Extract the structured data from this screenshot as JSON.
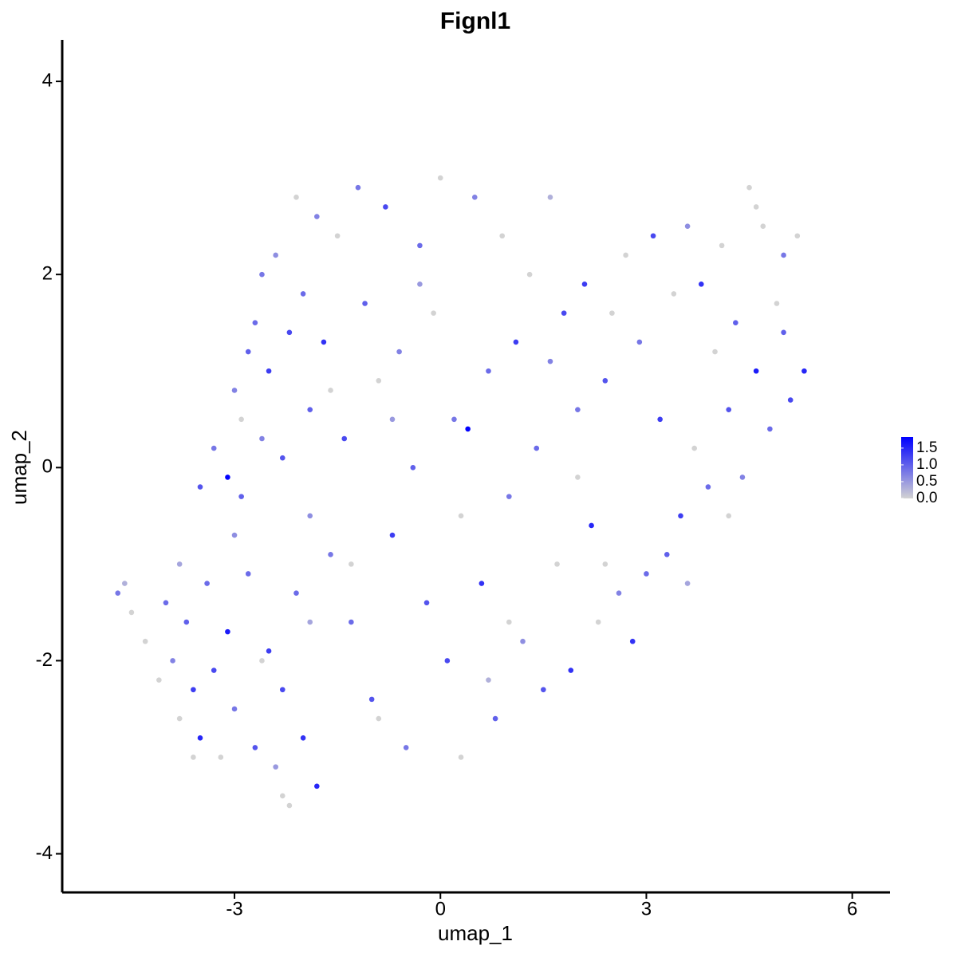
{
  "chart_data": {
    "type": "scatter",
    "title": "Fignl1",
    "x_label": "umap_1",
    "y_label": "umap_2",
    "xlim": [
      -5.51,
      6.55
    ],
    "ylim": [
      -4.4,
      4.43
    ],
    "xticks": [
      -3,
      0,
      3,
      6
    ],
    "yticks": [
      -4,
      -2,
      0,
      2,
      4
    ],
    "color_low": "#d3d3d3",
    "color_high": "#0000ff",
    "clim": [
      0,
      1.83
    ],
    "cticks": [
      {
        "value": 0,
        "label": "0.0"
      },
      0.5,
      {
        "value": 1,
        "label": "1.0"
      },
      1.5
    ],
    "x": [
      -4.7,
      -4.6,
      -4.5,
      -4.3,
      -4.1,
      -4.0,
      -3.9,
      -3.8,
      -3.7,
      -3.6,
      -3.5,
      -3.4,
      -3.3,
      -3.2,
      -3.1,
      -3.0,
      -3.0,
      -2.9,
      -2.8,
      -2.7,
      -2.6,
      -2.5,
      -2.4,
      -2.3,
      -2.2,
      -2.1,
      -2.0,
      -1.9,
      -1.8,
      -3.5,
      -3.3,
      -3.1,
      -3.0,
      -2.8,
      -2.9,
      -2.7,
      -2.6,
      -2.5,
      -2.4,
      -2.3,
      -2.2,
      -2.1,
      -2.0,
      -1.9,
      -1.8,
      -1.7,
      -1.6,
      -1.5,
      -1.4,
      -1.3,
      -1.2,
      -1.1,
      -1.0,
      -0.9,
      -0.8,
      -0.7,
      -0.6,
      -0.5,
      -0.4,
      -0.3,
      -0.2,
      -0.1,
      0.0,
      0.1,
      0.2,
      0.3,
      0.4,
      0.5,
      0.6,
      0.7,
      0.8,
      0.9,
      1.0,
      1.1,
      1.2,
      1.3,
      1.4,
      1.5,
      1.6,
      1.7,
      1.8,
      1.9,
      2.0,
      2.1,
      2.2,
      2.3,
      2.4,
      2.5,
      2.6,
      2.7,
      2.8,
      2.9,
      3.0,
      3.1,
      3.2,
      3.3,
      3.4,
      3.5,
      3.6,
      3.7,
      3.8,
      3.9,
      4.0,
      4.1,
      4.2,
      4.3,
      4.4,
      4.5,
      4.6,
      4.7,
      4.8,
      4.9,
      5.0,
      5.1,
      5.2,
      5.3,
      5.0,
      4.6,
      -1.3,
      -0.9,
      0.3,
      1.0,
      -2.6,
      -3.6,
      -1.6,
      -0.3,
      2.4,
      3.6,
      1.6,
      -1.9,
      -0.7,
      0.7,
      4.2,
      2.0,
      -2.3,
      -3.8
    ],
    "values": [
      -1.3,
      -1.2,
      -1.5,
      -1.8,
      -2.2,
      -1.4,
      -2.0,
      -2.6,
      -1.6,
      -2.3,
      -2.8,
      -1.2,
      -2.1,
      -3.0,
      -1.7,
      -2.5,
      -0.7,
      -0.3,
      -1.1,
      -2.9,
      0.3,
      -1.9,
      -3.1,
      -2.3,
      -3.5,
      -1.3,
      -2.8,
      -0.5,
      -3.3,
      -0.2,
      0.2,
      -0.1,
      0.8,
      1.2,
      0.5,
      1.5,
      2.0,
      1.0,
      2.2,
      0.1,
      1.4,
      2.8,
      1.8,
      0.6,
      2.6,
      1.3,
      -0.9,
      2.4,
      0.3,
      -1.6,
      2.9,
      1.7,
      -2.4,
      0.9,
      2.7,
      -0.7,
      1.2,
      -2.9,
      0.0,
      2.3,
      -1.4,
      1.6,
      3.0,
      -2.0,
      0.5,
      -3.0,
      0.4,
      2.8,
      -1.2,
      1.0,
      -2.6,
      2.4,
      -0.3,
      1.3,
      -1.8,
      2.0,
      0.2,
      -2.3,
      1.1,
      -1.0,
      1.6,
      -2.1,
      0.6,
      1.9,
      -0.6,
      -1.6,
      0.9,
      1.6,
      -1.3,
      2.2,
      -1.8,
      1.3,
      -1.1,
      2.4,
      0.5,
      -0.9,
      1.8,
      -0.5,
      2.5,
      0.2,
      1.9,
      -0.2,
      1.2,
      2.3,
      0.6,
      1.5,
      -0.1,
      2.9,
      1.0,
      2.5,
      0.4,
      1.7,
      2.2,
      0.7,
      2.4,
      1.0,
      1.4,
      2.7,
      -1.0,
      -2.6,
      -0.5,
      -1.6,
      -2.0,
      -3.0,
      0.8,
      1.9,
      -1.0,
      -1.2,
      2.8,
      -1.6,
      0.5,
      -2.2,
      -0.5,
      -0.1,
      -3.4,
      -1.0
    ],
    "color_values": [
      0.8,
      0.3,
      0,
      0,
      0,
      0.9,
      0.7,
      0,
      1.0,
      1.3,
      1.5,
      0.9,
      1.2,
      0,
      1.6,
      0.8,
      0.6,
      1.0,
      0.9,
      1.1,
      0.7,
      1.3,
      0.5,
      1.2,
      0,
      0.9,
      1.4,
      0.6,
      1.5,
      1.1,
      0.8,
      1.8,
      0.7,
      1.0,
      0,
      0.9,
      0.8,
      1.3,
      0.6,
      1.1,
      1.2,
      0,
      0.9,
      1.0,
      0.7,
      1.4,
      0.8,
      0,
      1.2,
      0.9,
      0.8,
      1.0,
      1.1,
      0,
      1.2,
      1.3,
      0.7,
      0.8,
      1.0,
      0.9,
      1.1,
      0,
      0,
      1.2,
      0.8,
      0,
      1.8,
      0.7,
      1.4,
      0.9,
      1.0,
      0,
      0.8,
      1.3,
      0.6,
      0,
      0.9,
      1.1,
      0.7,
      0,
      1.2,
      1.4,
      0.8,
      1.3,
      1.5,
      0,
      1.1,
      0,
      0.7,
      0,
      1.4,
      0.8,
      0.9,
      1.2,
      1.3,
      1.0,
      0,
      1.3,
      0.6,
      0,
      1.4,
      0.9,
      0,
      0,
      1.1,
      1.0,
      0.7,
      0,
      1.6,
      0,
      0.9,
      0,
      0.8,
      1.2,
      0,
      1.5,
      1.0,
      0,
      0,
      0,
      0,
      0,
      0,
      0,
      0,
      0.5,
      0,
      0.4,
      0.3,
      0.4,
      0.5,
      0.3,
      0,
      0,
      0,
      0.4
    ]
  }
}
